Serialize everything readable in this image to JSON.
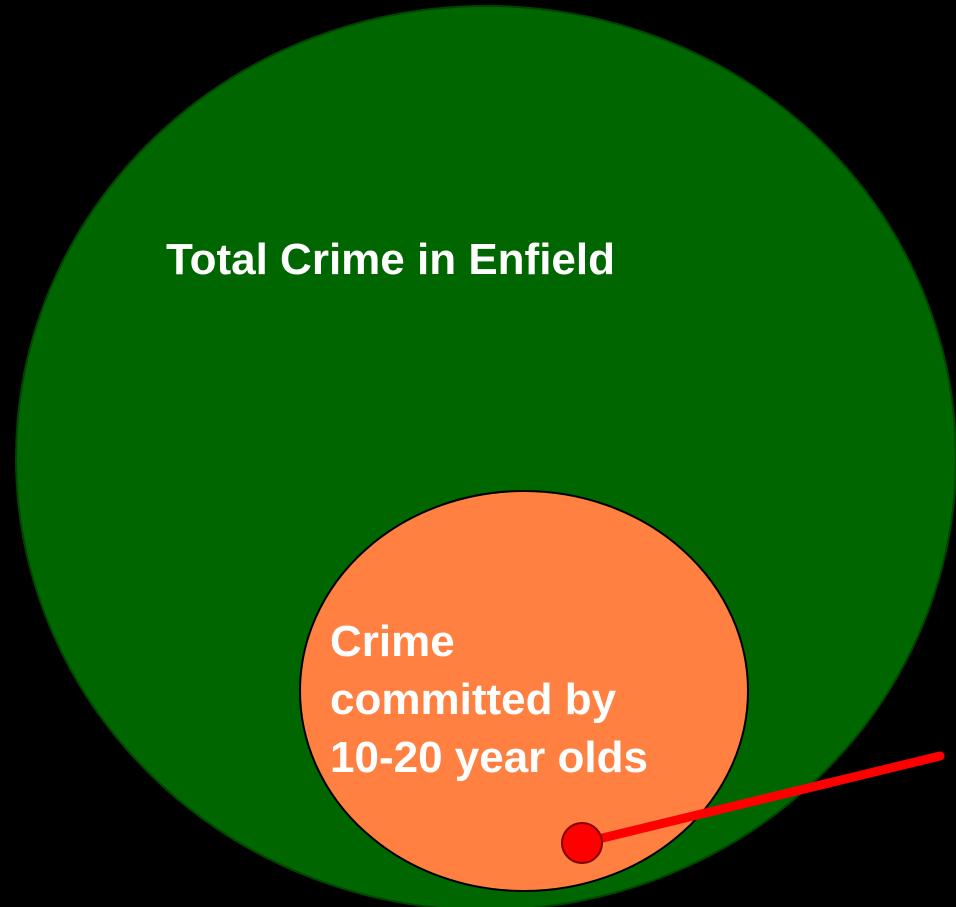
{
  "outer": {
    "label": "Total Crime in Enfield"
  },
  "inner": {
    "label_lines": [
      "Crime",
      "committed by",
      "10-20 year olds"
    ]
  }
}
